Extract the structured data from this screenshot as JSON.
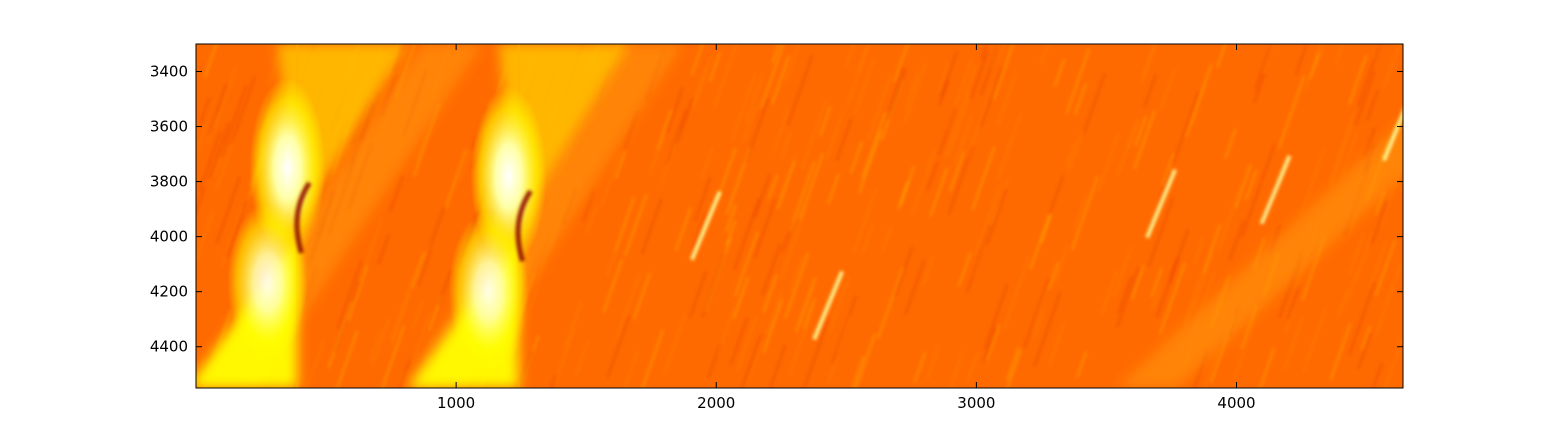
{
  "chart_data": {
    "type": "heatmap",
    "title": "",
    "xlabel": "",
    "ylabel": "",
    "colormap": "hot",
    "xlim": [
      0,
      4640
    ],
    "ylim": [
      4550,
      3300
    ],
    "y_inverted": true,
    "x_ticks": [
      1000,
      2000,
      3000,
      4000
    ],
    "x_tick_labels": [
      "1000",
      "2000",
      "3000",
      "4000"
    ],
    "y_ticks": [
      3400,
      3600,
      3800,
      4000,
      4200,
      4400
    ],
    "y_tick_labels": [
      "3400",
      "3600",
      "3800",
      "4000",
      "4200",
      "4400"
    ],
    "grid": false,
    "legend": false,
    "background_color": "#ff6a00",
    "bright_band_colors": [
      "#ffff00",
      "#ffff9a"
    ],
    "dark_feature_color": "#8b0000",
    "features": [
      {
        "kind": "vertical-edge",
        "x": 390,
        "y_from": 3300,
        "y_to": 4550
      },
      {
        "kind": "vertical-edge",
        "x": 1240,
        "y_from": 3300,
        "y_to": 4550
      },
      {
        "kind": "hyperbolic-event",
        "apex_x": 390,
        "apex_y": 3950
      },
      {
        "kind": "hyperbolic-event",
        "apex_x": 1240,
        "apex_y": 3980
      },
      {
        "kind": "diagonal-front",
        "x_from": 800,
        "y_from": 4550,
        "x_to": 1640,
        "y_to": 3300
      },
      {
        "kind": "diagonal-front",
        "x_from": 0,
        "y_from": 4550,
        "x_to": 870,
        "y_to": 3300
      },
      {
        "kind": "diagonal-front",
        "x_from": 3540,
        "y_from": 4550,
        "x_to": 4640,
        "y_to": 3580
      },
      {
        "kind": "bright-streak",
        "x": 3710,
        "y": 3880
      },
      {
        "kind": "bright-streak",
        "x": 4150,
        "y": 3830
      },
      {
        "kind": "bright-streak",
        "x": 4620,
        "y": 3600
      },
      {
        "kind": "bright-streak",
        "x": 2430,
        "y": 4250
      },
      {
        "kind": "bright-streak",
        "x": 1960,
        "y": 3960
      }
    ]
  }
}
